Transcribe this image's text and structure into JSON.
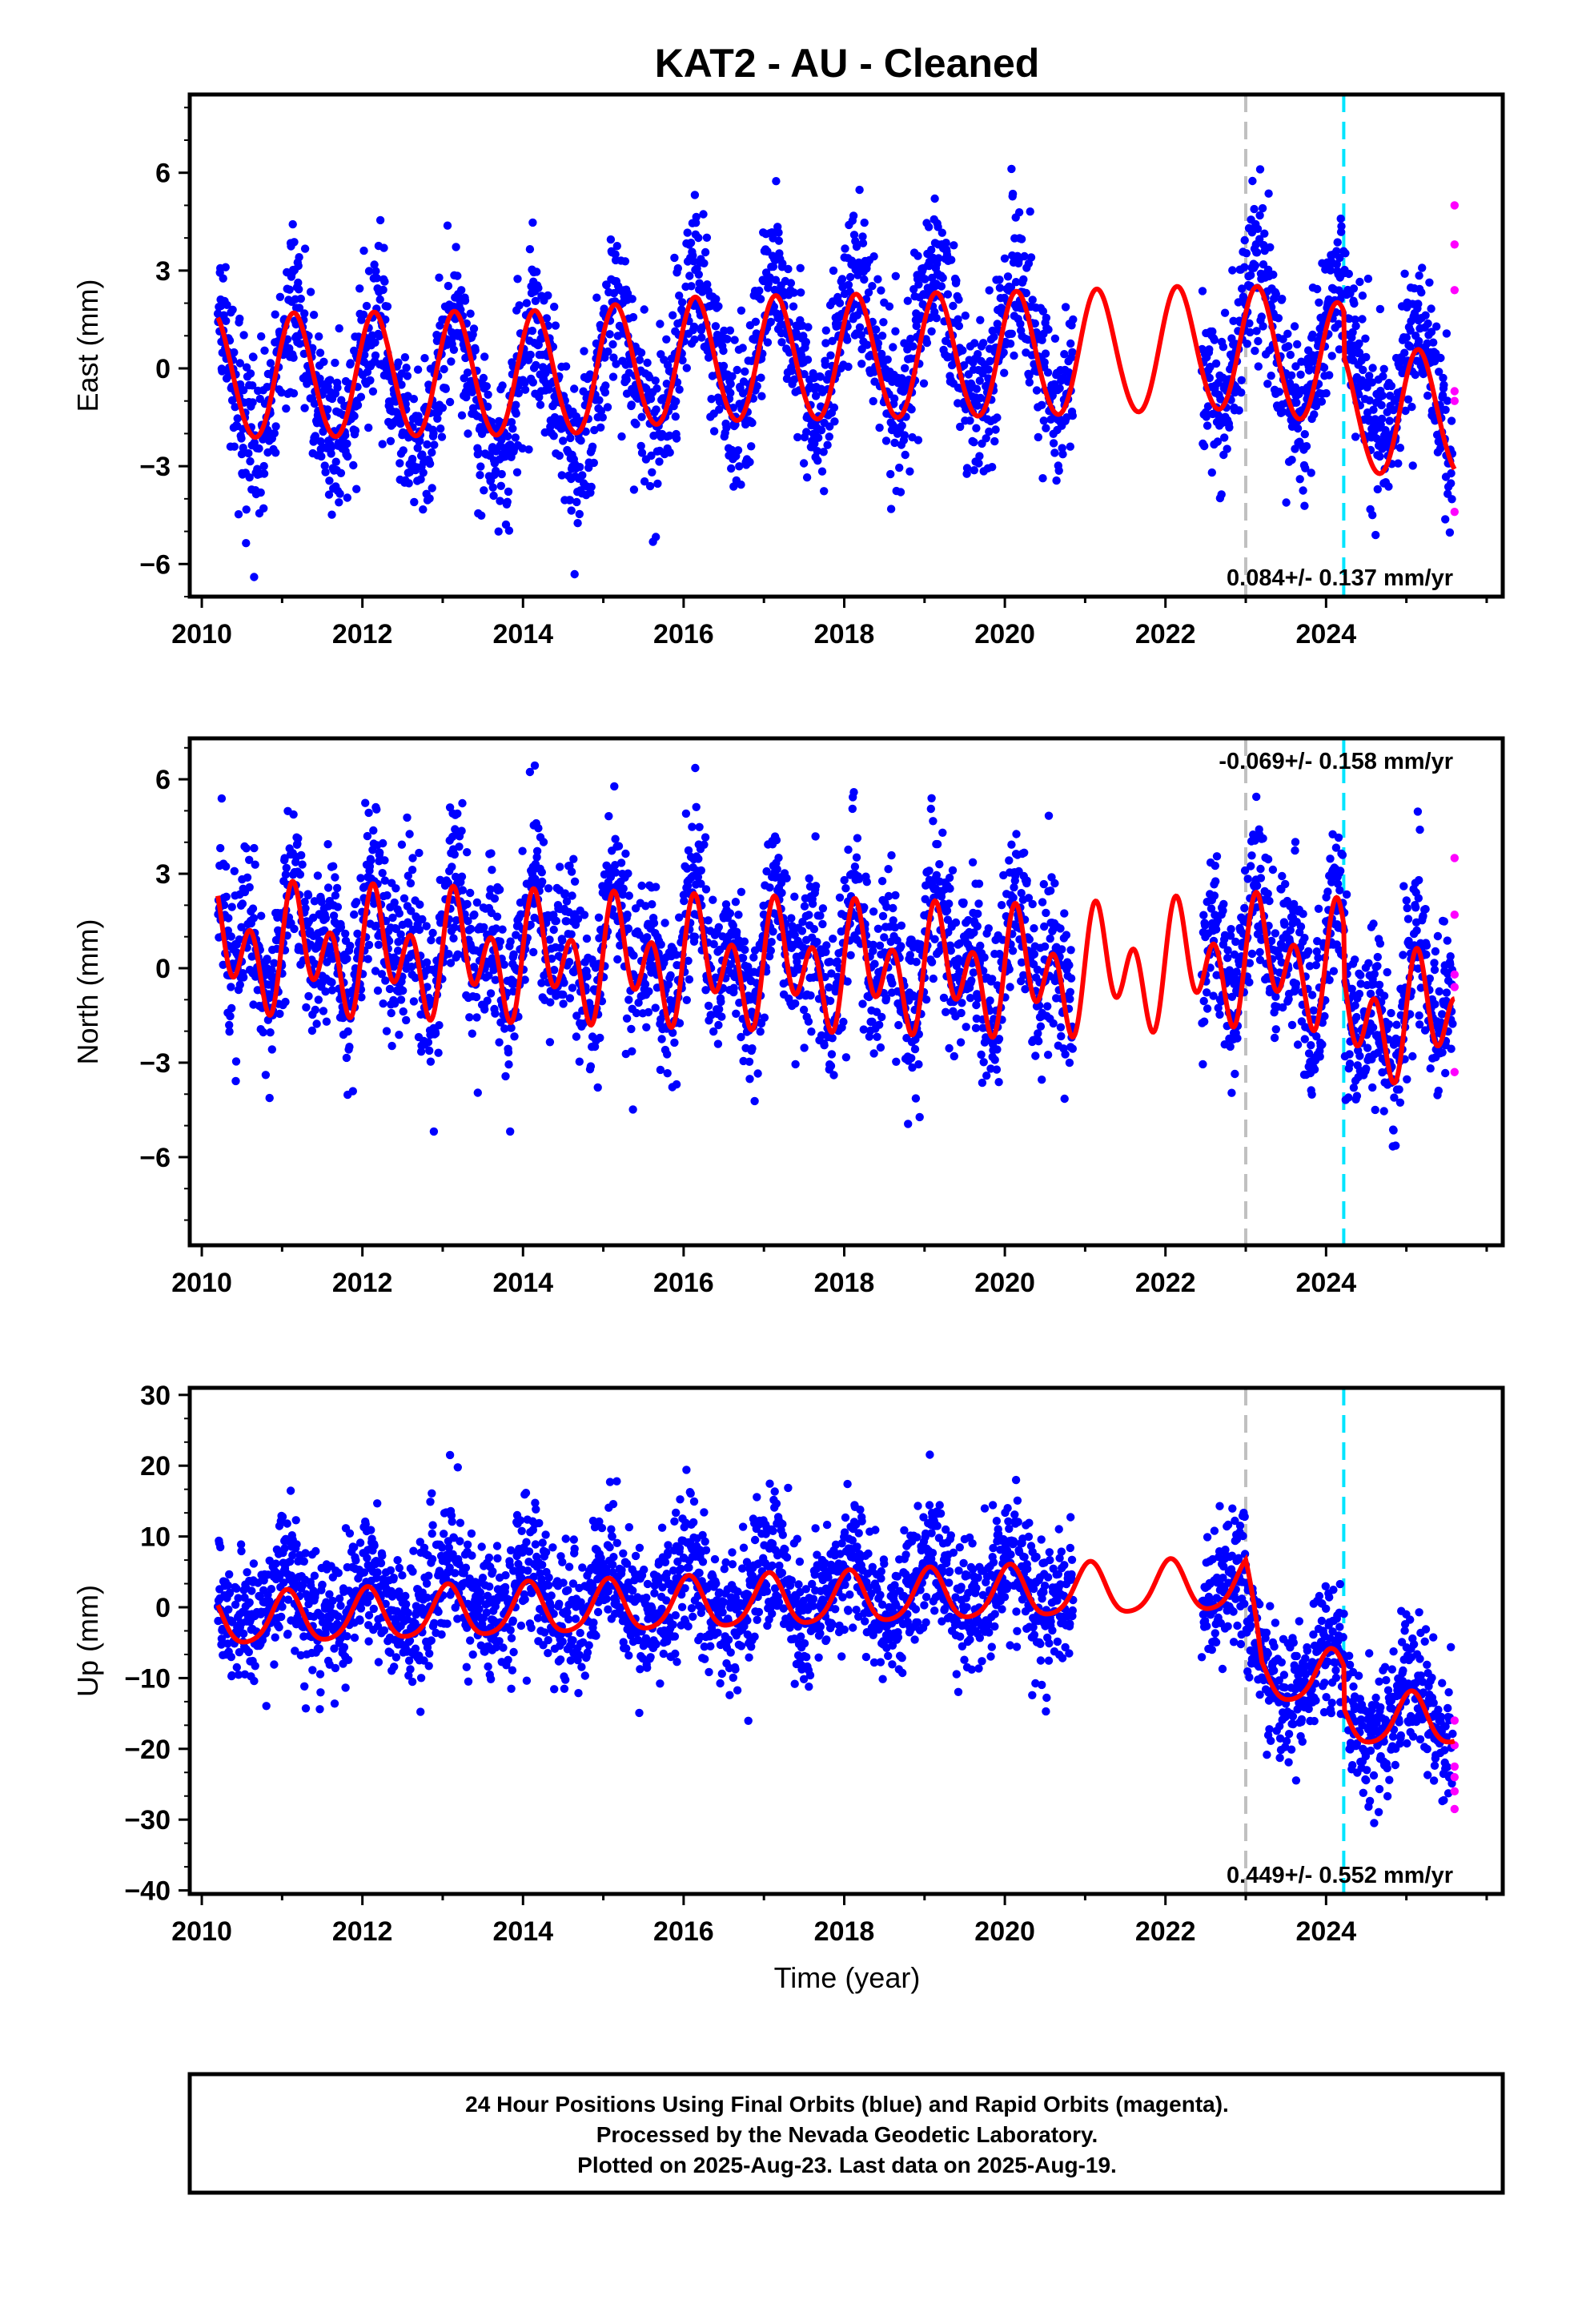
{
  "title": "KAT2  - AU - Cleaned",
  "xlabel": "Time (year)",
  "footer": {
    "lines": [
      "24 Hour Positions Using Final Orbits (blue) and Rapid Orbits (magenta).",
      "Processed by the Nevada Geodetic Laboratory.",
      "Plotted on 2025-Aug-23. Last data on 2025-Aug-19."
    ]
  },
  "colors": {
    "final_orbits": "#0000ff",
    "rapid_orbits": "#ff00ff",
    "model_fit": "#ff0000",
    "gray_line": "#c0c0c0",
    "cyan_line": "#00e5ff"
  },
  "chart_data": [
    {
      "type": "scatter",
      "component": "east",
      "ylabel": "East (mm)",
      "rate": "0.084+/- 0.137 mm/yr",
      "rate_position": "bottom-right",
      "xlim": [
        2009.85,
        2026.2
      ],
      "ylim": [
        -7,
        8.4
      ],
      "xticks": [
        2010,
        2012,
        2014,
        2016,
        2018,
        2020,
        2022,
        2024
      ],
      "yticks": [
        -6,
        -3,
        0,
        3,
        6
      ],
      "vlines": [
        {
          "x": 2023.0,
          "color": "gray"
        },
        {
          "x": 2024.22,
          "color": "cyan"
        }
      ],
      "data_gap": [
        2020.85,
        2022.45
      ],
      "series": [
        {
          "role": "final-orbits",
          "model": {
            "offset": 0,
            "trend": [
              [
                2010.2,
                -0.3
              ],
              [
                2014.5,
                -0.9
              ],
              [
                2016.0,
                0.6
              ],
              [
                2020.5,
                0.8
              ],
              [
                2023.0,
                1.0
              ],
              [
                2024.22,
                0.2
              ],
              [
                2025.6,
                -1.2
              ]
            ],
            "annual": 2.0,
            "semiannual": 0.2,
            "noise": 1.2
          }
        },
        {
          "role": "rapid-orbits",
          "x": [
            2025.6,
            2025.6,
            2025.6,
            2025.6,
            2025.6,
            2025.6
          ],
          "y": [
            5.0,
            3.8,
            2.4,
            -0.7,
            -1.0,
            -4.4
          ]
        },
        {
          "role": "model-fit",
          "curve": {
            "trend": [
              [
                2010.2,
                -0.3
              ],
              [
                2014.5,
                -0.2
              ],
              [
                2016.0,
                0.2
              ],
              [
                2020.5,
                0.4
              ],
              [
                2023.0,
                0.6
              ],
              [
                2024.22,
                0.0
              ],
              [
                2024.23,
                -1.4
              ],
              [
                2025.6,
                -1.4
              ]
            ],
            "annual": 1.9,
            "semiannual": 0.1
          }
        }
      ]
    },
    {
      "type": "scatter",
      "component": "north",
      "ylabel": "North (mm)",
      "rate": "-0.069+/- 0.158 mm/yr",
      "rate_position": "top-right",
      "xlim": [
        2009.85,
        2026.2
      ],
      "ylim": [
        -8.8,
        7.3
      ],
      "xticks": [
        2010,
        2012,
        2014,
        2016,
        2018,
        2020,
        2022,
        2024
      ],
      "yticks": [
        -6,
        -3,
        0,
        3,
        6
      ],
      "vlines": [
        {
          "x": 2023.0,
          "color": "gray"
        },
        {
          "x": 2024.22,
          "color": "cyan"
        }
      ],
      "data_gap": [
        2020.85,
        2022.45
      ],
      "series": [
        {
          "role": "final-orbits",
          "model": {
            "offset": 0.2,
            "trend": [
              [
                2010.2,
                0.8
              ],
              [
                2020.5,
                0.0
              ],
              [
                2023.0,
                0.6
              ],
              [
                2024.22,
                -0.3
              ],
              [
                2024.23,
                -1.8
              ],
              [
                2025.6,
                -1.4
              ]
            ],
            "annual": 1.2,
            "semiannual": 1.3,
            "noise": 1.3
          }
        },
        {
          "role": "rapid-orbits",
          "x": [
            2025.6,
            2025.6,
            2025.6,
            2025.6,
            2025.6
          ],
          "y": [
            3.5,
            1.7,
            -0.2,
            -0.6,
            -3.3
          ]
        },
        {
          "role": "model-fit",
          "curve": {
            "trend": [
              [
                2010.2,
                0.6
              ],
              [
                2020.5,
                -0.2
              ],
              [
                2023.0,
                0.2
              ],
              [
                2024.22,
                0.0
              ],
              [
                2024.23,
                -1.6
              ],
              [
                2025.6,
                -1.6
              ]
            ],
            "annual": 1.0,
            "semiannual": 1.4
          }
        }
      ]
    },
    {
      "type": "scatter",
      "component": "up",
      "ylabel": "Up (mm)",
      "rate": "0.449+/- 0.552 mm/yr",
      "rate_position": "bottom-right",
      "xlim": [
        2009.85,
        2026.2
      ],
      "ylim": [
        -40.5,
        31
      ],
      "xticks": [
        2010,
        2012,
        2014,
        2016,
        2018,
        2020,
        2022,
        2024
      ],
      "yticks": [
        -40,
        -30,
        -20,
        -10,
        0,
        10,
        20,
        30
      ],
      "vlines": [
        {
          "x": 2023.0,
          "color": "gray"
        },
        {
          "x": 2024.22,
          "color": "cyan"
        }
      ],
      "data_gap": [
        2020.85,
        2022.45
      ],
      "series": [
        {
          "role": "final-orbits",
          "model": {
            "offset": 0,
            "trend": [
              [
                2010.2,
                0.5
              ],
              [
                2020.8,
                3.0
              ],
              [
                2023.0,
                4.0
              ],
              [
                2023.01,
                -10.0
              ],
              [
                2024.22,
                -9.0
              ],
              [
                2024.23,
                -15.5
              ],
              [
                2025.6,
                -15.0
              ]
            ],
            "annual": 4.0,
            "semiannual": 0.8,
            "noise": 4.8
          }
        },
        {
          "role": "rapid-orbits",
          "x": [
            2025.6,
            2025.6,
            2025.6,
            2025.6,
            2025.6,
            2025.6
          ],
          "y": [
            -16.0,
            -19.5,
            -22.5,
            -24.0,
            -26.0,
            -28.5
          ]
        },
        {
          "role": "model-fit",
          "curve": {
            "trend": [
              [
                2010.2,
                -2.0
              ],
              [
                2020.8,
                2.2
              ],
              [
                2022.9,
                3.0
              ],
              [
                2023.0,
                3.0
              ],
              [
                2023.2,
                -10.0
              ],
              [
                2024.22,
                -10.0
              ],
              [
                2024.23,
                -16.0
              ],
              [
                2025.6,
                -16.0
              ]
            ],
            "annual": 3.6,
            "semiannual": 0.6
          }
        }
      ]
    }
  ]
}
